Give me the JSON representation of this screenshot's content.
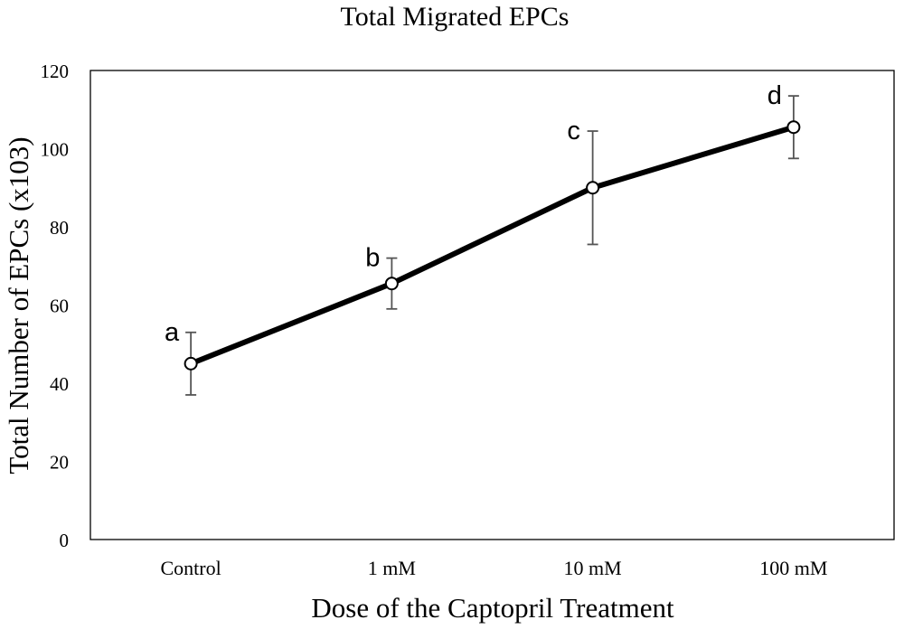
{
  "chart_data": {
    "type": "line",
    "title": "Total Migrated EPCs",
    "xlabel": "Dose of the Captopril Treatment",
    "ylabel": "Total Number of EPCs (x103)",
    "categories": [
      "Control",
      "1 mM",
      "10 mM",
      "100 mM"
    ],
    "ylim": [
      0,
      120
    ],
    "yticks": [
      0,
      20,
      40,
      60,
      80,
      100,
      120
    ],
    "series": [
      {
        "values": [
          45,
          65.5,
          90,
          105.5
        ],
        "error": [
          8,
          6.5,
          14.5,
          8
        ],
        "point_labels": [
          "a",
          "b",
          "c",
          "d"
        ],
        "color": "#000000"
      }
    ],
    "grid": false,
    "legend": "none"
  }
}
